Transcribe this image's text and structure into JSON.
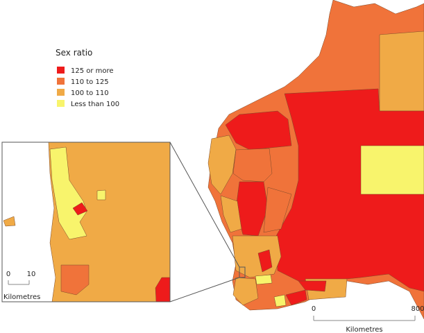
{
  "legend": {
    "title": "Sex ratio",
    "items": [
      {
        "label": "125 or more",
        "color": "#ee1b1b"
      },
      {
        "label": "110 to 125",
        "color": "#f0733a"
      },
      {
        "label": "100 to 110",
        "color": "#f0aa46"
      },
      {
        "label": "Less than 100",
        "color": "#f8f46c"
      }
    ]
  },
  "scale": {
    "start": 0,
    "end": 800,
    "unit": "Kilometres"
  },
  "inset_scale": {
    "start": 0,
    "end": 10,
    "unit": "Kilometres"
  }
}
